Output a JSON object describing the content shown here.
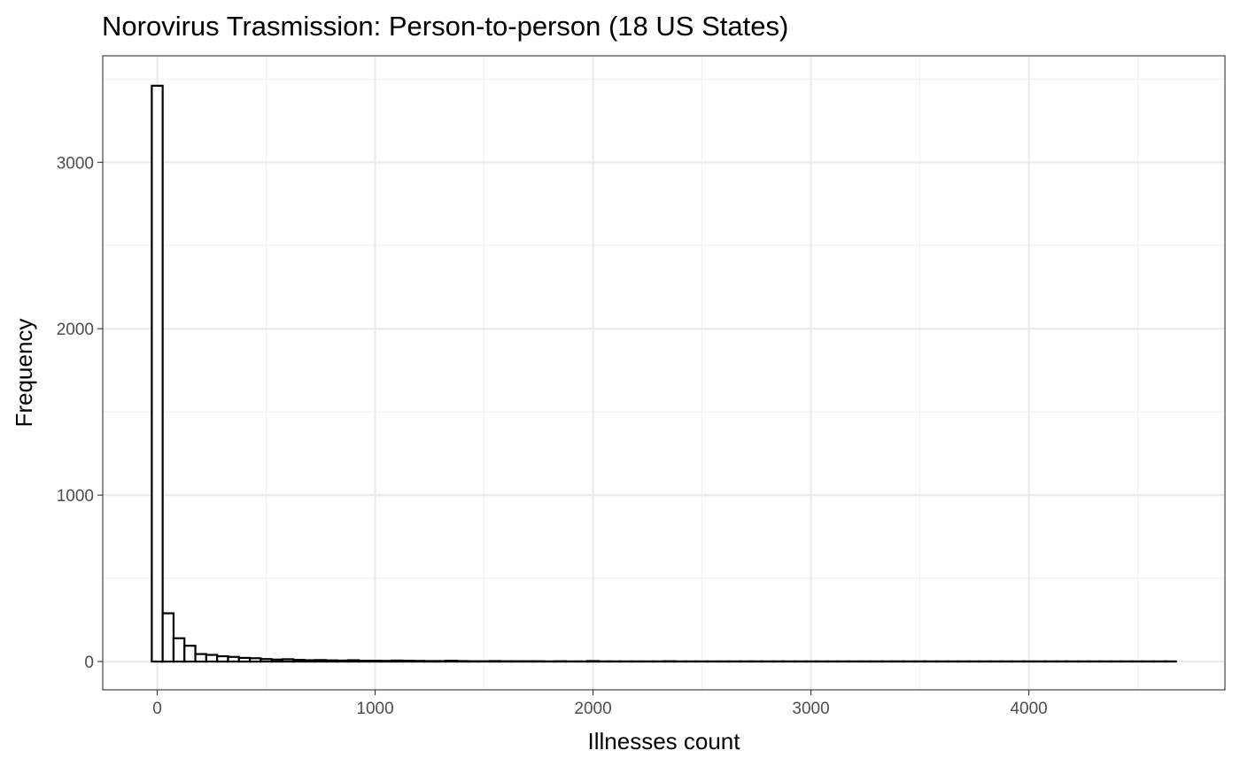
{
  "chart_data": {
    "type": "histogram",
    "title": "Norovirus Trasmission: Person-to-person (18 US States)",
    "xlabel": "Illnesses count",
    "ylabel": "Frequency",
    "xlim": [
      -250,
      4900
    ],
    "ylim": [
      -170,
      3640
    ],
    "x_ticks": [
      0,
      1000,
      2000,
      3000,
      4000
    ],
    "x_tick_labels": [
      "0",
      "1000",
      "2000",
      "3000",
      "4000"
    ],
    "y_ticks": [
      0,
      1000,
      2000,
      3000
    ],
    "y_tick_labels": [
      "0",
      "1000",
      "2000",
      "3000"
    ],
    "x_minor_grid": [
      500,
      1500,
      2500,
      3500,
      4500
    ],
    "y_minor_grid": [
      500,
      1500,
      2500,
      3500
    ],
    "grid": true,
    "theme": "bw",
    "bar_fill": "#ffffff",
    "bar_outline": "#000000",
    "bin_start": -25,
    "bin_width": 50,
    "counts": [
      3460,
      290,
      140,
      95,
      45,
      40,
      32,
      28,
      22,
      20,
      15,
      12,
      14,
      10,
      8,
      9,
      7,
      6,
      8,
      5,
      5,
      4,
      6,
      5,
      4,
      3,
      3,
      5,
      3,
      2,
      2,
      3,
      2,
      2,
      2,
      2,
      1,
      2,
      1,
      1,
      3,
      1,
      1,
      1,
      1,
      1,
      1,
      2,
      1,
      1,
      1,
      1,
      1,
      1,
      1,
      1,
      1,
      1,
      1,
      1,
      1,
      1,
      1,
      1,
      1,
      1,
      1,
      1,
      1,
      1,
      1,
      1,
      1,
      1,
      1,
      1,
      1,
      1,
      1,
      1,
      1,
      1,
      1,
      1,
      1,
      1,
      1,
      1,
      1,
      1,
      1,
      1,
      1,
      1
    ]
  }
}
